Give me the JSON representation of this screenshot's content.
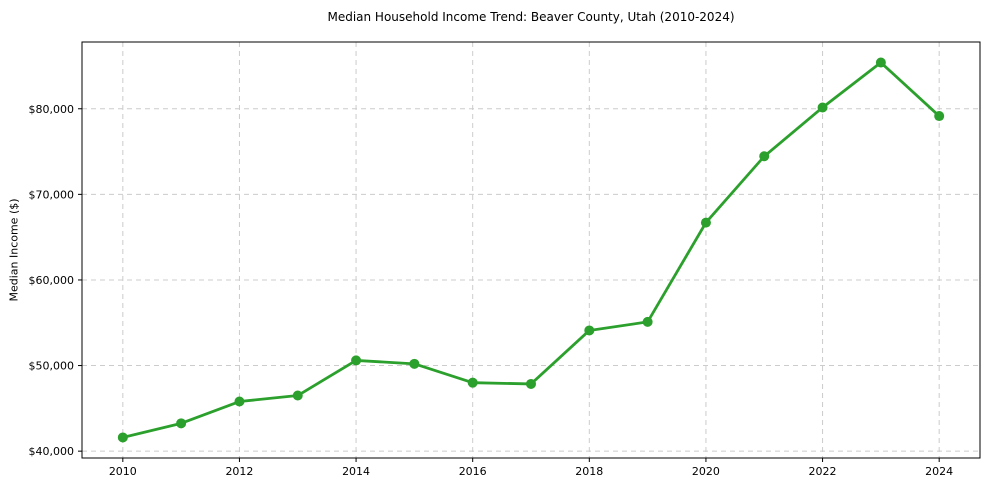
{
  "chart_data": {
    "type": "line",
    "title": "Median Household Income Trend: Beaver County, Utah (2010-2024)",
    "xlabel": "",
    "ylabel": "Median Income ($)",
    "x": [
      2010,
      2011,
      2012,
      2013,
      2014,
      2015,
      2016,
      2017,
      2018,
      2019,
      2020,
      2021,
      2022,
      2023,
      2024
    ],
    "series": [
      {
        "name": "Median Household Income",
        "values": [
          41600,
          43250,
          45800,
          46500,
          50600,
          50200,
          48000,
          47850,
          54100,
          55100,
          66700,
          74450,
          80150,
          85400,
          79150
        ]
      }
    ],
    "xlim": [
      2009.3,
      2024.7
    ],
    "ylim": [
      39200,
      87800
    ],
    "xticks": [
      2010,
      2012,
      2014,
      2016,
      2018,
      2020,
      2022,
      2024
    ],
    "xtick_labels": [
      "2010",
      "2012",
      "2014",
      "2016",
      "2018",
      "2020",
      "2022",
      "2024"
    ],
    "yticks": [
      40000,
      50000,
      60000,
      70000,
      80000
    ],
    "ytick_labels": [
      "$40,000",
      "$50,000",
      "$60,000",
      "$70,000",
      "$80,000"
    ],
    "grid": true,
    "grid_style": "dashed",
    "legend": "none",
    "colors": {
      "line": "#2ca02c",
      "marker": "#2ca02c",
      "grid": "#cccccc",
      "spine": "#000000",
      "text": "#000000",
      "background": "#ffffff"
    }
  }
}
